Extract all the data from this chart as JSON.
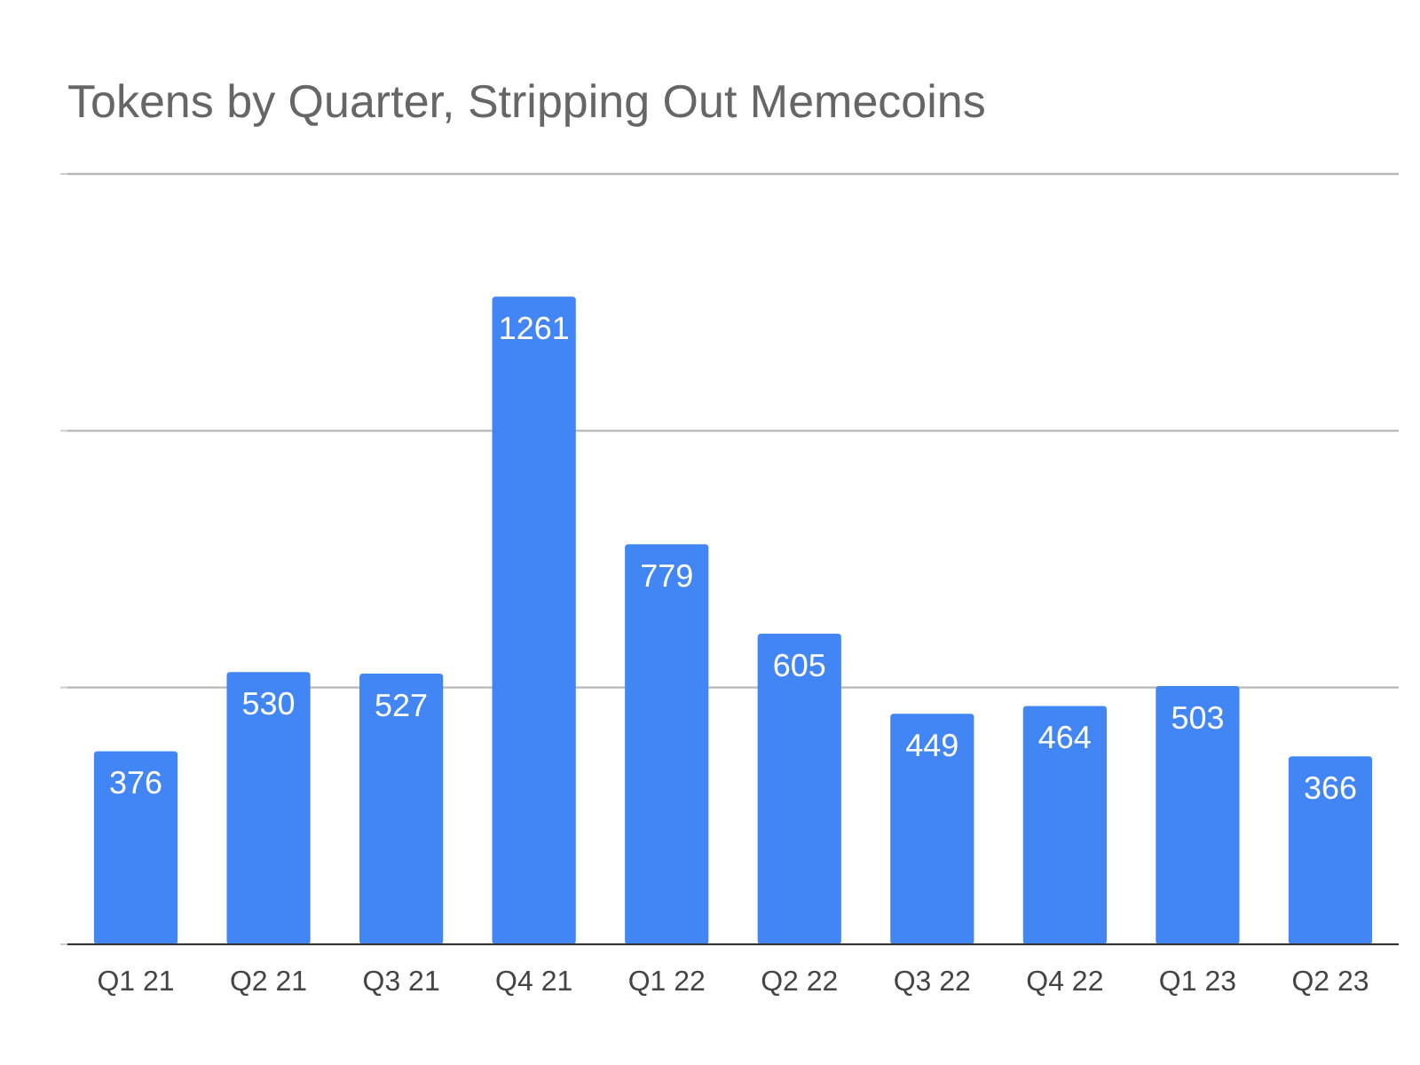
{
  "chart_data": {
    "type": "bar",
    "title": "Tokens by Quarter, Stripping Out Memecoins",
    "categories": [
      "Q1 21",
      "Q2 21",
      "Q3 21",
      "Q4 21",
      "Q1 22",
      "Q2 22",
      "Q3 22",
      "Q4 22",
      "Q1 23",
      "Q2 23"
    ],
    "values": [
      376,
      530,
      527,
      1261,
      779,
      605,
      449,
      464,
      503,
      366
    ],
    "color": "#4285f4",
    "ylim": [
      0,
      1500
    ],
    "yticks": [
      {
        "value": 0,
        "label": null
      },
      {
        "value": 500,
        "label": null
      },
      {
        "value": 1000,
        "label": null
      },
      {
        "value": 1500,
        "label": null
      }
    ],
    "tick_labels": "x",
    "grid": "y",
    "data_labels": true
  }
}
